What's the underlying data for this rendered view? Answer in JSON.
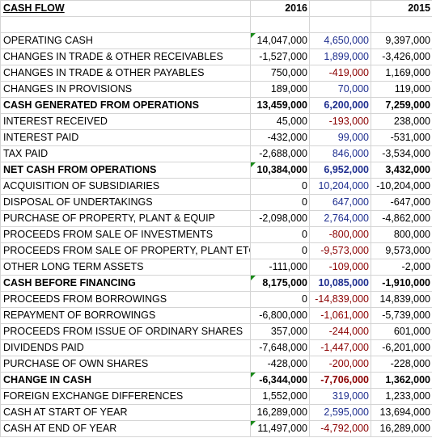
{
  "header": {
    "title": "CASH FLOW",
    "year_a": "2016",
    "year_b": "2015"
  },
  "rows": [
    {
      "label": "OPERATING CASH",
      "v2016": "14,047,000",
      "delta": "4,650,000",
      "v2015": "9,397,000",
      "bold": false,
      "delta_sign": "pos",
      "flag": true
    },
    {
      "label": "CHANGES IN TRADE & OTHER RECEIVABLES",
      "v2016": "-1,527,000",
      "delta": "1,899,000",
      "v2015": "-3,426,000",
      "bold": false,
      "delta_sign": "pos",
      "flag": false
    },
    {
      "label": "CHANGES IN TRADE & OTHER PAYABLES",
      "v2016": "750,000",
      "delta": "-419,000",
      "v2015": "1,169,000",
      "bold": false,
      "delta_sign": "neg",
      "flag": false
    },
    {
      "label": "CHANGES IN PROVISIONS",
      "v2016": "189,000",
      "delta": "70,000",
      "v2015": "119,000",
      "bold": false,
      "delta_sign": "pos",
      "flag": false
    },
    {
      "label": "CASH GENERATED FROM OPERATIONS",
      "v2016": "13,459,000",
      "delta": "6,200,000",
      "v2015": "7,259,000",
      "bold": true,
      "delta_sign": "pos",
      "flag": false
    },
    {
      "label": "INTEREST RECEIVED",
      "v2016": "45,000",
      "delta": "-193,000",
      "v2015": "238,000",
      "bold": false,
      "delta_sign": "neg",
      "flag": false
    },
    {
      "label": "INTEREST PAID",
      "v2016": "-432,000",
      "delta": "99,000",
      "v2015": "-531,000",
      "bold": false,
      "delta_sign": "pos",
      "flag": false
    },
    {
      "label": "TAX PAID",
      "v2016": "-2,688,000",
      "delta": "846,000",
      "v2015": "-3,534,000",
      "bold": false,
      "delta_sign": "pos",
      "flag": false
    },
    {
      "label": "NET CASH FROM OPERATIONS",
      "v2016": "10,384,000",
      "delta": "6,952,000",
      "v2015": "3,432,000",
      "bold": true,
      "delta_sign": "pos",
      "flag": true
    },
    {
      "label": "ACQUISITION OF SUBSIDIARIES",
      "v2016": "0",
      "delta": "10,204,000",
      "v2015": "-10,204,000",
      "bold": false,
      "delta_sign": "pos",
      "flag": false
    },
    {
      "label": "DISPOSAL OF UNDERTAKINGS",
      "v2016": "0",
      "delta": "647,000",
      "v2015": "-647,000",
      "bold": false,
      "delta_sign": "pos",
      "flag": false
    },
    {
      "label": "PURCHASE OF PROPERTY, PLANT & EQUIP",
      "v2016": "-2,098,000",
      "delta": "2,764,000",
      "v2015": "-4,862,000",
      "bold": false,
      "delta_sign": "pos",
      "flag": false
    },
    {
      "label": "PROCEEDS FROM SALE OF INVESTMENTS",
      "v2016": "0",
      "delta": "-800,000",
      "v2015": "800,000",
      "bold": false,
      "delta_sign": "neg",
      "flag": false
    },
    {
      "label": "PROCEEDS FROM SALE OF PROPERTY, PLANT ETC",
      "v2016": "0",
      "delta": "-9,573,000",
      "v2015": "9,573,000",
      "bold": false,
      "delta_sign": "neg",
      "flag": false
    },
    {
      "label": "OTHER LONG TERM ASSETS",
      "v2016": "-111,000",
      "delta": "-109,000",
      "v2015": "-2,000",
      "bold": false,
      "delta_sign": "neg",
      "flag": false
    },
    {
      "label": "CASH BEFORE FINANCING",
      "v2016": "8,175,000",
      "delta": "10,085,000",
      "v2015": "-1,910,000",
      "bold": true,
      "delta_sign": "pos",
      "flag": true
    },
    {
      "label": "PROCEEDS FROM BORROWINGS",
      "v2016": "0",
      "delta": "-14,839,000",
      "v2015": "14,839,000",
      "bold": false,
      "delta_sign": "neg",
      "flag": false
    },
    {
      "label": "REPAYMENT OF BORROWINGS",
      "v2016": "-6,800,000",
      "delta": "-1,061,000",
      "v2015": "-5,739,000",
      "bold": false,
      "delta_sign": "neg",
      "flag": false
    },
    {
      "label": "PROCEEDS FROM ISSUE OF ORDINARY SHARES",
      "v2016": "357,000",
      "delta": "-244,000",
      "v2015": "601,000",
      "bold": false,
      "delta_sign": "neg",
      "flag": false
    },
    {
      "label": "DIVIDENDS PAID",
      "v2016": "-7,648,000",
      "delta": "-1,447,000",
      "v2015": "-6,201,000",
      "bold": false,
      "delta_sign": "neg",
      "flag": false
    },
    {
      "label": "PURCHASE OF OWN SHARES",
      "v2016": "-428,000",
      "delta": "-200,000",
      "v2015": "-228,000",
      "bold": false,
      "delta_sign": "neg",
      "flag": false
    },
    {
      "label": "CHANGE IN CASH",
      "v2016": "-6,344,000",
      "delta": "-7,706,000",
      "v2015": "1,362,000",
      "bold": true,
      "delta_sign": "neg",
      "flag": true
    },
    {
      "label": "FOREIGN EXCHANGE DIFFERENCES",
      "v2016": "1,552,000",
      "delta": "319,000",
      "v2015": "1,233,000",
      "bold": false,
      "delta_sign": "pos",
      "flag": false
    },
    {
      "label": "CASH AT START OF YEAR",
      "v2016": "16,289,000",
      "delta": "2,595,000",
      "v2015": "13,694,000",
      "bold": false,
      "delta_sign": "pos",
      "flag": false
    },
    {
      "label": "CASH AT END OF YEAR",
      "v2016": "11,497,000",
      "delta": "-4,792,000",
      "v2015": "16,289,000",
      "bold": false,
      "delta_sign": "neg",
      "flag": true
    }
  ],
  "colors": {
    "positive_delta": "#1f2f8f",
    "negative_delta": "#8b0000",
    "comment_flag": "#1a8a1a",
    "gridline": "#d4d4d4"
  }
}
